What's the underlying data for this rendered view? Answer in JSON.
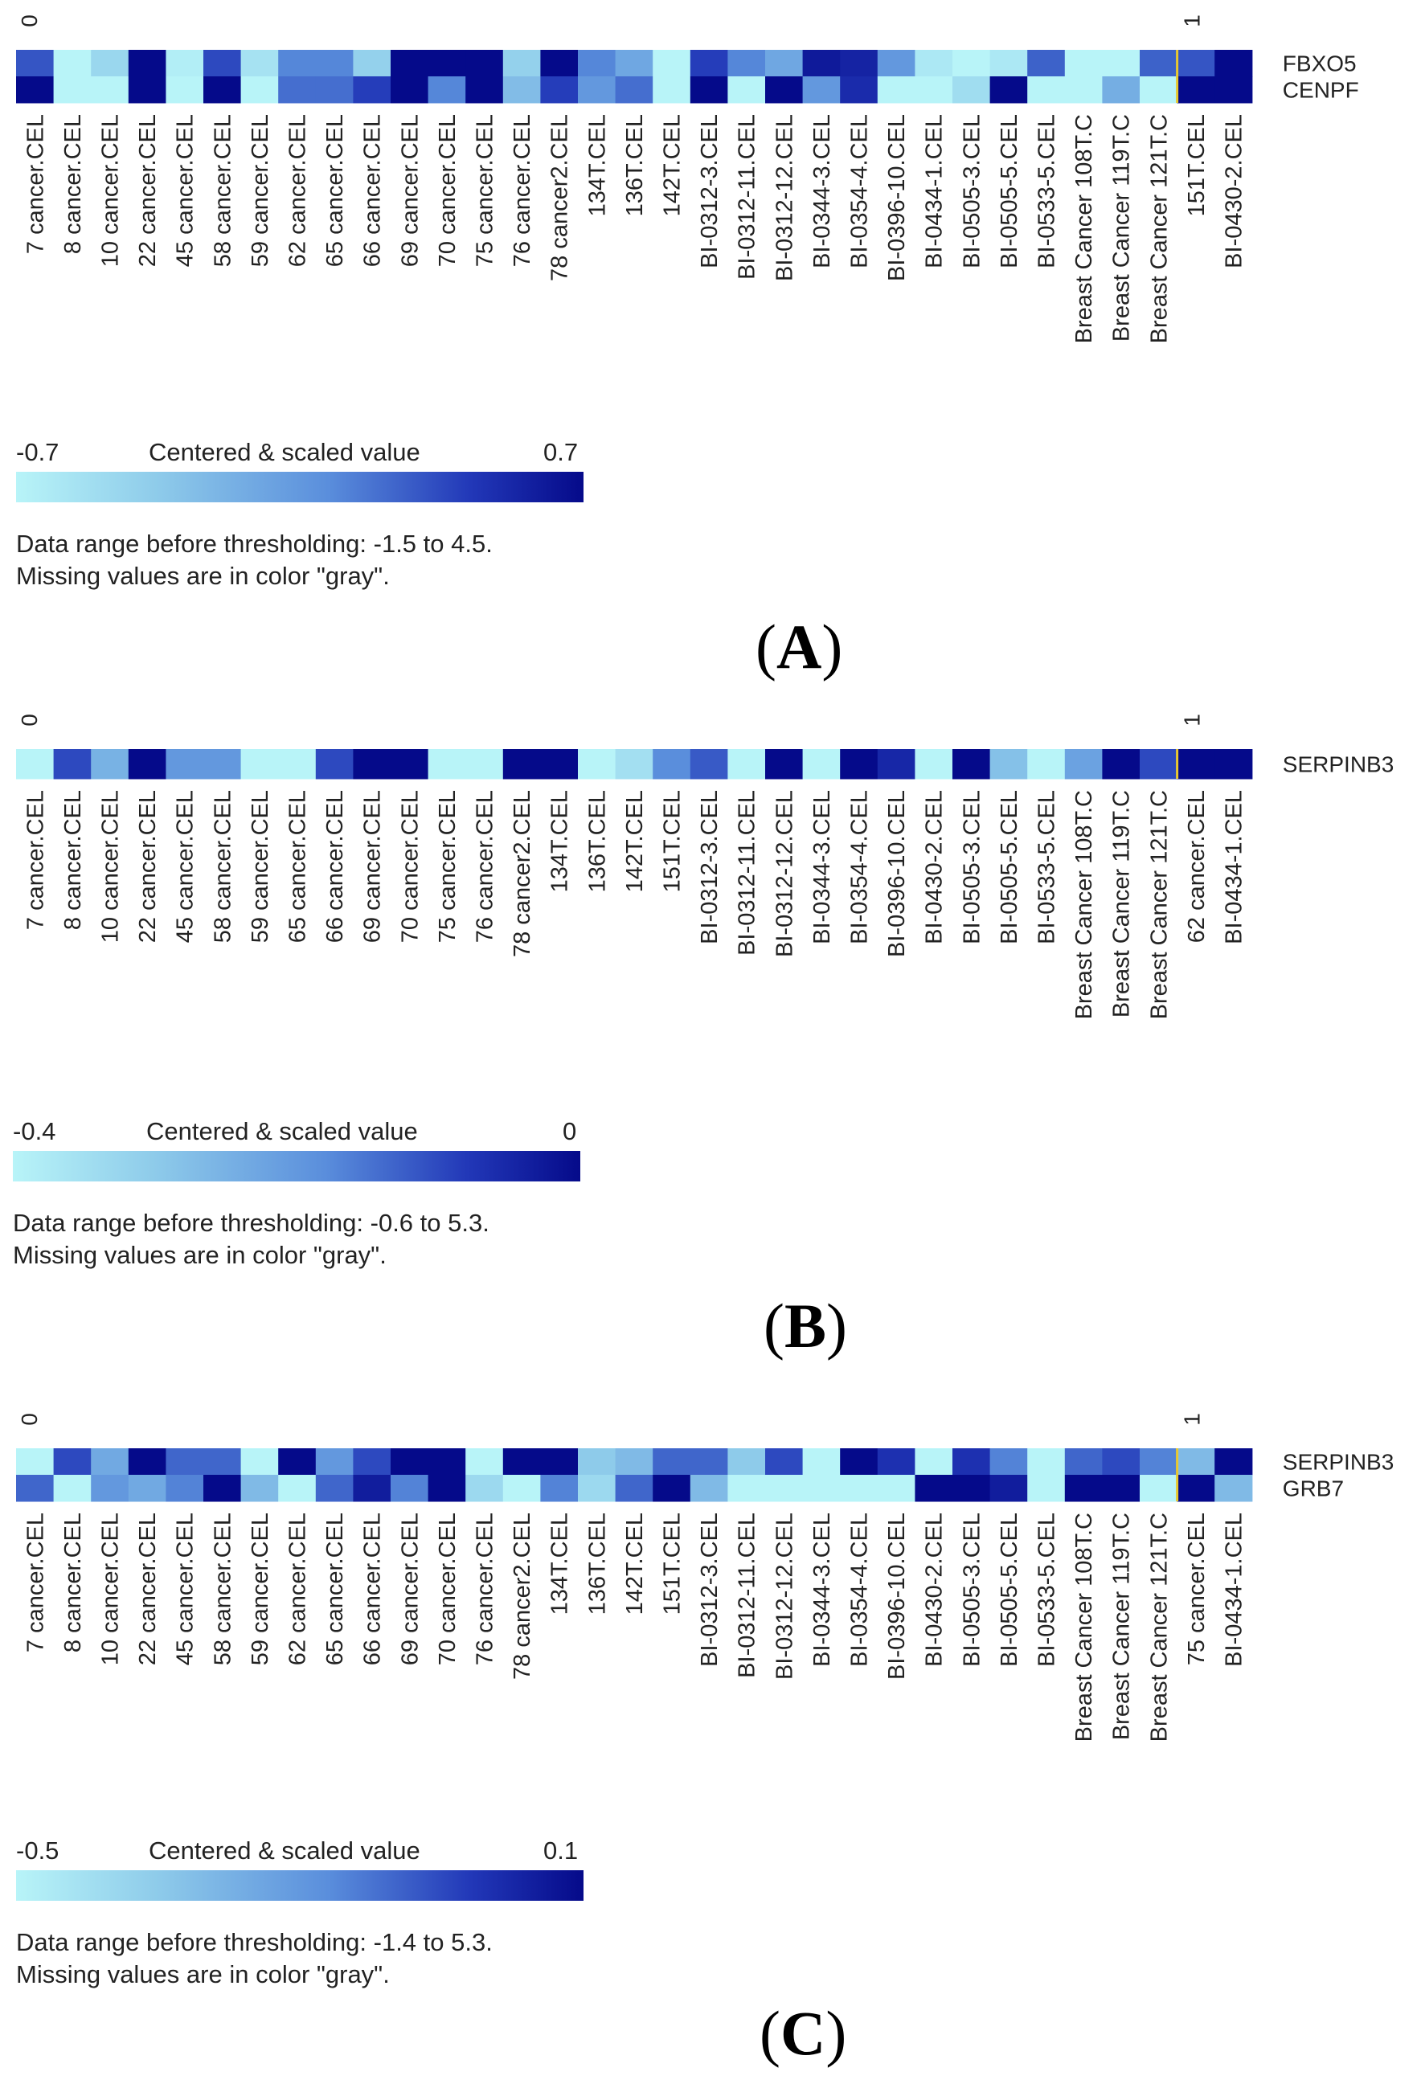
{
  "chart_data": [
    {
      "type": "heatmap",
      "panel_label": "A",
      "title": "",
      "index_start": "0",
      "index_end": "1",
      "genes": [
        "FBXO5",
        "CENPF"
      ],
      "samples": [
        "7 cancer.CEL",
        "8 cancer.CEL",
        "10 cancer.CEL",
        "22 cancer.CEL",
        "45 cancer.CEL",
        "58 cancer.CEL",
        "59 cancer.CEL",
        "62 cancer.CEL",
        "65 cancer.CEL",
        "66 cancer.CEL",
        "69 cancer.CEL",
        "70 cancer.CEL",
        "75 cancer.CEL",
        "76 cancer.CEL",
        "78 cancer2.CEL",
        "134T.CEL",
        "136T.CEL",
        "142T.CEL",
        "BI-0312-3.CEL",
        "BI-0312-11.CEL",
        "BI-0312-12.CEL",
        "BI-0344-3.CEL",
        "BI-0354-4.CEL",
        "BI-0396-10.CEL",
        "BI-0434-1.CEL",
        "BI-0505-3.CEL",
        "BI-0505-5.CEL",
        "BI-0533-5.CEL",
        "Breast Cancer 108T.C",
        "Breast Cancer 119T.C",
        "Breast Cancer 121T.C",
        "151T.CEL",
        "BI-0430-2.CEL"
      ],
      "values": [
        [
          0.3,
          -0.7,
          -0.45,
          0.7,
          -0.65,
          0.35,
          -0.55,
          0.1,
          0.1,
          -0.4,
          0.7,
          0.7,
          0.7,
          -0.4,
          0.7,
          0.1,
          -0.1,
          -0.7,
          0.4,
          0.1,
          -0.1,
          0.6,
          0.55,
          0.0,
          -0.6,
          -0.7,
          -0.6,
          0.25,
          -0.7,
          -0.7,
          0.25,
          0.3,
          0.7
        ],
        [
          0.7,
          -0.7,
          -0.7,
          0.7,
          -0.7,
          0.7,
          -0.7,
          0.2,
          0.2,
          0.4,
          0.7,
          0.1,
          0.7,
          -0.25,
          0.4,
          0.0,
          0.2,
          -0.7,
          0.7,
          -0.7,
          0.7,
          0.0,
          0.5,
          -0.7,
          -0.7,
          -0.5,
          0.7,
          -0.7,
          -0.7,
          -0.15,
          -0.7,
          0.7,
          0.7
        ]
      ],
      "divider_after_index": 30,
      "legend": {
        "min_label": "-0.7",
        "max_label": "0.7",
        "title": "Centered & scaled value",
        "min": -0.7,
        "max": 0.7
      },
      "note_range": "Data range before thresholding: -1.5 to 4.5.",
      "note_missing": "Missing values are in color \"gray\"."
    },
    {
      "type": "heatmap",
      "panel_label": "B",
      "title": "",
      "index_start": "0",
      "index_end": "1",
      "genes": [
        "SERPINB3"
      ],
      "samples": [
        "7 cancer.CEL",
        "8 cancer.CEL",
        "10 cancer.CEL",
        "22 cancer.CEL",
        "45 cancer.CEL",
        "58 cancer.CEL",
        "59 cancer.CEL",
        "65 cancer.CEL",
        "66 cancer.CEL",
        "69 cancer.CEL",
        "70 cancer.CEL",
        "75 cancer.CEL",
        "76 cancer.CEL",
        "78 cancer2.CEL",
        "134T.CEL",
        "136T.CEL",
        "142T.CEL",
        "151T.CEL",
        "BI-0312-3.CEL",
        "BI-0312-11.CEL",
        "BI-0312-12.CEL",
        "BI-0344-3.CEL",
        "BI-0354-4.CEL",
        "BI-0396-10.CEL",
        "BI-0430-2.CEL",
        "BI-0505-3.CEL",
        "BI-0505-5.CEL",
        "BI-0533-5.CEL",
        "Breast Cancer 108T.C",
        "Breast Cancer 119T.C",
        "Breast Cancer 121T.C",
        "62 cancer.CEL",
        "BI-0434-1.CEL"
      ],
      "values": [
        [
          -0.4,
          -0.1,
          -0.25,
          0.0,
          -0.2,
          -0.2,
          -0.4,
          -0.4,
          -0.1,
          0.0,
          0.0,
          -0.4,
          -0.4,
          0.0,
          0.0,
          -0.4,
          -0.35,
          -0.18,
          -0.12,
          -0.4,
          0.0,
          -0.4,
          0.0,
          -0.05,
          -0.4,
          0.0,
          -0.28,
          -0.4,
          -0.22,
          0.0,
          -0.1,
          0.0,
          0.0
        ]
      ],
      "divider_after_index": 30,
      "legend": {
        "min_label": "-0.4",
        "max_label": "0",
        "title": "Centered & scaled value",
        "min": -0.4,
        "max": 0.0
      },
      "note_range": "Data range before thresholding: -0.6 to 5.3.",
      "note_missing": "Missing values are in color \"gray\"."
    },
    {
      "type": "heatmap",
      "panel_label": "C",
      "title": "",
      "index_start": "0",
      "index_end": "1",
      "genes": [
        "SERPINB3",
        "GRB7"
      ],
      "samples": [
        "7 cancer.CEL",
        "8 cancer.CEL",
        "10 cancer.CEL",
        "22 cancer.CEL",
        "45 cancer.CEL",
        "58 cancer.CEL",
        "59 cancer.CEL",
        "62 cancer.CEL",
        "65 cancer.CEL",
        "66 cancer.CEL",
        "69 cancer.CEL",
        "70 cancer.CEL",
        "76 cancer.CEL",
        "78 cancer2.CEL",
        "134T.CEL",
        "136T.CEL",
        "142T.CEL",
        "151T.CEL",
        "BI-0312-3.CEL",
        "BI-0312-11.CEL",
        "BI-0312-12.CEL",
        "BI-0344-3.CEL",
        "BI-0354-4.CEL",
        "BI-0396-10.CEL",
        "BI-0430-2.CEL",
        "BI-0505-3.CEL",
        "BI-0505-5.CEL",
        "BI-0533-5.CEL",
        "Breast Cancer 108T.C",
        "Breast Cancer 119T.C",
        "Breast Cancer 121T.C",
        "75 cancer.CEL",
        "BI-0434-1.CEL"
      ],
      "values": [
        [
          -0.5,
          -0.05,
          -0.25,
          0.1,
          -0.1,
          -0.1,
          -0.5,
          0.1,
          -0.2,
          -0.05,
          0.1,
          0.1,
          -0.5,
          0.1,
          0.1,
          -0.35,
          -0.3,
          -0.1,
          -0.1,
          -0.35,
          -0.05,
          -0.5,
          0.1,
          0.0,
          -0.5,
          0.0,
          -0.15,
          -0.5,
          -0.1,
          -0.05,
          -0.15,
          -0.3,
          0.1
        ],
        [
          -0.1,
          -0.5,
          -0.2,
          -0.25,
          -0.15,
          0.1,
          -0.3,
          -0.5,
          -0.1,
          0.05,
          -0.15,
          0.1,
          -0.4,
          -0.5,
          -0.15,
          -0.4,
          -0.1,
          0.1,
          -0.3,
          -0.5,
          -0.5,
          -0.5,
          -0.5,
          -0.5,
          0.1,
          0.1,
          0.05,
          -0.5,
          0.1,
          0.1,
          -0.5,
          0.1,
          -0.3
        ]
      ],
      "divider_after_index": 30,
      "legend": {
        "min_label": "-0.5",
        "max_label": "0.1",
        "title": "Centered & scaled value",
        "min": -0.5,
        "max": 0.1
      },
      "note_range": "Data range before thresholding: -1.4 to 5.3.",
      "note_missing": "Missing values are in color \"gray\"."
    }
  ],
  "colors": {
    "low": "#b8f4f8",
    "mid1": "#8ecbea",
    "mid2": "#5a8edc",
    "mid3": "#2238b8",
    "high": "#050a8a",
    "divider": "#e8c830",
    "text": "#222222"
  }
}
